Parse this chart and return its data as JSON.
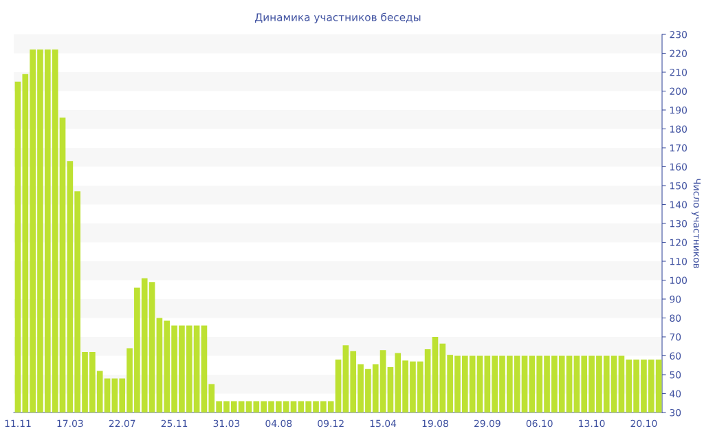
{
  "chart_data": {
    "type": "bar",
    "title": "Динамика участников беседы",
    "ylabel": "Число участников",
    "color": "#bde132",
    "categories": [
      "11.11",
      null,
      null,
      null,
      null,
      null,
      null,
      "17.03",
      null,
      null,
      null,
      null,
      null,
      null,
      "22.07",
      null,
      null,
      null,
      null,
      null,
      null,
      "25.11",
      null,
      null,
      null,
      null,
      null,
      null,
      "31.03",
      null,
      null,
      null,
      null,
      null,
      null,
      "04.08",
      null,
      null,
      null,
      null,
      null,
      null,
      "09.12",
      null,
      null,
      null,
      null,
      null,
      null,
      "15.04",
      null,
      null,
      null,
      null,
      null,
      null,
      "19.08",
      null,
      null,
      null,
      null,
      null,
      null,
      "29.09",
      null,
      null,
      null,
      null,
      null,
      null,
      "06.10",
      null,
      null,
      null,
      null,
      null,
      null,
      "13.10",
      null,
      null,
      null,
      null,
      null,
      null,
      "20.10",
      null,
      null
    ],
    "values": [
      205,
      209,
      222,
      222,
      222,
      222,
      186,
      163,
      147,
      62,
      62,
      52,
      48,
      48,
      48,
      64,
      96,
      101,
      99,
      80,
      78.5,
      76,
      76,
      76,
      76,
      76,
      45,
      36,
      36,
      36,
      36,
      36,
      36,
      36,
      36,
      36,
      36,
      36,
      36,
      36,
      36,
      36,
      36,
      58,
      65.5,
      62.5,
      55.5,
      53,
      55.5,
      63,
      54,
      61.5,
      57.5,
      57,
      57,
      63.5,
      70,
      66.5,
      60.5,
      60,
      60,
      60,
      60,
      60,
      60,
      60,
      60,
      60,
      60,
      60,
      60,
      60,
      60,
      60,
      60,
      60,
      60,
      60,
      60,
      60,
      60,
      60,
      58,
      58,
      58,
      58,
      58
    ],
    "ylim": [
      30,
      230
    ],
    "yticks": [
      30,
      40,
      50,
      60,
      70,
      80,
      90,
      100,
      110,
      120,
      130,
      140,
      150,
      160,
      170,
      180,
      190,
      200,
      210,
      220,
      230
    ]
  }
}
